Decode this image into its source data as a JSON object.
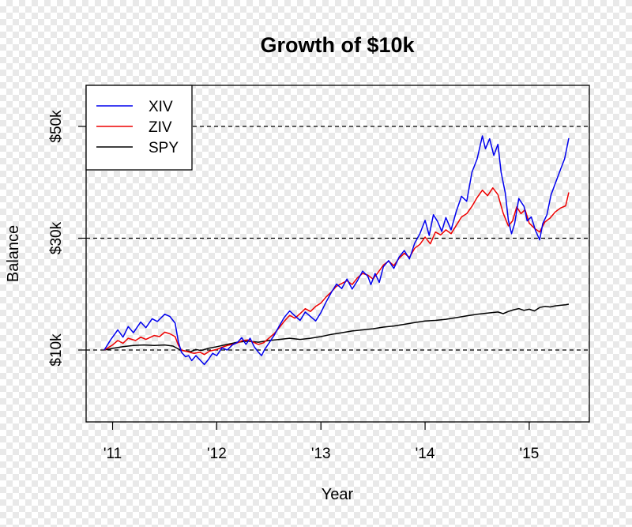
{
  "chart_data": {
    "type": "line",
    "title": "Growth of $10k",
    "xlabel": "Year",
    "ylabel": "Balance",
    "x_range": [
      2010.92,
      2015.38
    ],
    "x_ticks": [
      {
        "value": 2011,
        "label": "'11"
      },
      {
        "value": 2012,
        "label": "'12"
      },
      {
        "value": 2013,
        "label": "'13"
      },
      {
        "value": 2014,
        "label": "'14"
      },
      {
        "value": 2015,
        "label": "'15"
      }
    ],
    "ylim": [
      0,
      59000
    ],
    "y_ticks": [
      {
        "value": 10000,
        "label": "$10k"
      },
      {
        "value": 30000,
        "label": "$30k"
      },
      {
        "value": 50000,
        "label": "$50k"
      }
    ],
    "reference_lines": [
      10000,
      30000,
      50000
    ],
    "grid": false,
    "legend_position": "top-left",
    "series": [
      {
        "name": "XIV",
        "color": "#0000ee",
        "points": [
          [
            2010.92,
            10000
          ],
          [
            2010.98,
            11800
          ],
          [
            2011.05,
            13600
          ],
          [
            2011.1,
            12300
          ],
          [
            2011.15,
            14200
          ],
          [
            2011.2,
            13100
          ],
          [
            2011.27,
            15000
          ],
          [
            2011.32,
            14000
          ],
          [
            2011.38,
            15600
          ],
          [
            2011.43,
            15100
          ],
          [
            2011.5,
            16400
          ],
          [
            2011.55,
            16000
          ],
          [
            2011.6,
            14800
          ],
          [
            2011.63,
            11600
          ],
          [
            2011.66,
            9600
          ],
          [
            2011.7,
            8800
          ],
          [
            2011.73,
            9000
          ],
          [
            2011.76,
            8100
          ],
          [
            2011.8,
            9000
          ],
          [
            2011.84,
            8200
          ],
          [
            2011.88,
            7400
          ],
          [
            2011.92,
            8300
          ],
          [
            2011.96,
            9400
          ],
          [
            2012.0,
            9000
          ],
          [
            2012.05,
            10400
          ],
          [
            2012.1,
            10000
          ],
          [
            2012.15,
            10900
          ],
          [
            2012.2,
            11400
          ],
          [
            2012.24,
            12200
          ],
          [
            2012.28,
            11000
          ],
          [
            2012.32,
            12100
          ],
          [
            2012.36,
            10600
          ],
          [
            2012.4,
            9600
          ],
          [
            2012.43,
            9000
          ],
          [
            2012.46,
            10100
          ],
          [
            2012.5,
            11200
          ],
          [
            2012.55,
            12600
          ],
          [
            2012.6,
            14300
          ],
          [
            2012.65,
            15900
          ],
          [
            2012.7,
            17000
          ],
          [
            2012.75,
            16100
          ],
          [
            2012.8,
            15300
          ],
          [
            2012.85,
            16800
          ],
          [
            2012.9,
            16000
          ],
          [
            2012.95,
            15200
          ],
          [
            2013.0,
            16700
          ],
          [
            2013.05,
            18600
          ],
          [
            2013.1,
            20300
          ],
          [
            2013.15,
            21800
          ],
          [
            2013.2,
            21000
          ],
          [
            2013.25,
            22700
          ],
          [
            2013.3,
            20900
          ],
          [
            2013.35,
            22400
          ],
          [
            2013.4,
            24100
          ],
          [
            2013.45,
            23200
          ],
          [
            2013.48,
            21700
          ],
          [
            2013.52,
            23700
          ],
          [
            2013.56,
            22100
          ],
          [
            2013.6,
            24900
          ],
          [
            2013.65,
            26000
          ],
          [
            2013.7,
            24600
          ],
          [
            2013.75,
            26600
          ],
          [
            2013.8,
            27800
          ],
          [
            2013.85,
            26300
          ],
          [
            2013.9,
            29100
          ],
          [
            2013.95,
            30800
          ],
          [
            2014.0,
            33200
          ],
          [
            2014.04,
            30500
          ],
          [
            2014.08,
            34200
          ],
          [
            2014.12,
            33000
          ],
          [
            2014.16,
            31200
          ],
          [
            2014.2,
            33700
          ],
          [
            2014.25,
            31500
          ],
          [
            2014.3,
            34800
          ],
          [
            2014.35,
            37500
          ],
          [
            2014.4,
            36600
          ],
          [
            2014.45,
            41800
          ],
          [
            2014.5,
            44200
          ],
          [
            2014.55,
            48300
          ],
          [
            2014.58,
            46000
          ],
          [
            2014.62,
            47800
          ],
          [
            2014.66,
            44800
          ],
          [
            2014.7,
            46800
          ],
          [
            2014.73,
            41800
          ],
          [
            2014.77,
            38100
          ],
          [
            2014.8,
            33200
          ],
          [
            2014.83,
            30800
          ],
          [
            2014.86,
            32600
          ],
          [
            2014.9,
            37100
          ],
          [
            2014.95,
            35700
          ],
          [
            2014.98,
            33100
          ],
          [
            2015.02,
            33800
          ],
          [
            2015.06,
            31400
          ],
          [
            2015.1,
            29700
          ],
          [
            2015.13,
            32600
          ],
          [
            2015.17,
            34200
          ],
          [
            2015.21,
            37800
          ],
          [
            2015.25,
            39800
          ],
          [
            2015.3,
            42300
          ],
          [
            2015.34,
            44200
          ],
          [
            2015.38,
            47900
          ]
        ]
      },
      {
        "name": "ZIV",
        "color": "#ee0000",
        "points": [
          [
            2010.92,
            10000
          ],
          [
            2011.0,
            10900
          ],
          [
            2011.05,
            11700
          ],
          [
            2011.1,
            11200
          ],
          [
            2011.15,
            12100
          ],
          [
            2011.22,
            11700
          ],
          [
            2011.27,
            12300
          ],
          [
            2011.32,
            11900
          ],
          [
            2011.4,
            12600
          ],
          [
            2011.45,
            12400
          ],
          [
            2011.5,
            13200
          ],
          [
            2011.55,
            12900
          ],
          [
            2011.6,
            12400
          ],
          [
            2011.63,
            10900
          ],
          [
            2011.66,
            10000
          ],
          [
            2011.72,
            9700
          ],
          [
            2011.78,
            9400
          ],
          [
            2011.84,
            9600
          ],
          [
            2011.88,
            9200
          ],
          [
            2011.93,
            9800
          ],
          [
            2012.0,
            10100
          ],
          [
            2012.05,
            10500
          ],
          [
            2012.1,
            10800
          ],
          [
            2012.15,
            11000
          ],
          [
            2012.2,
            11300
          ],
          [
            2012.25,
            11700
          ],
          [
            2012.3,
            11800
          ],
          [
            2012.35,
            11400
          ],
          [
            2012.4,
            11000
          ],
          [
            2012.45,
            11300
          ],
          [
            2012.5,
            12100
          ],
          [
            2012.55,
            12900
          ],
          [
            2012.6,
            14000
          ],
          [
            2012.65,
            15200
          ],
          [
            2012.7,
            16200
          ],
          [
            2012.75,
            15700
          ],
          [
            2012.8,
            16500
          ],
          [
            2012.85,
            17400
          ],
          [
            2012.9,
            16900
          ],
          [
            2012.95,
            17800
          ],
          [
            2013.0,
            18400
          ],
          [
            2013.05,
            19500
          ],
          [
            2013.1,
            20400
          ],
          [
            2013.15,
            21400
          ],
          [
            2013.2,
            21900
          ],
          [
            2013.25,
            22400
          ],
          [
            2013.3,
            21700
          ],
          [
            2013.35,
            22900
          ],
          [
            2013.4,
            23700
          ],
          [
            2013.45,
            23400
          ],
          [
            2013.5,
            22700
          ],
          [
            2013.55,
            23900
          ],
          [
            2013.6,
            25200
          ],
          [
            2013.65,
            25900
          ],
          [
            2013.7,
            25100
          ],
          [
            2013.75,
            26400
          ],
          [
            2013.8,
            27300
          ],
          [
            2013.85,
            26600
          ],
          [
            2013.9,
            28200
          ],
          [
            2013.95,
            28900
          ],
          [
            2014.0,
            30200
          ],
          [
            2014.05,
            29000
          ],
          [
            2014.1,
            31100
          ],
          [
            2014.15,
            30600
          ],
          [
            2014.2,
            31500
          ],
          [
            2014.25,
            30800
          ],
          [
            2014.3,
            32300
          ],
          [
            2014.35,
            33800
          ],
          [
            2014.4,
            34400
          ],
          [
            2014.45,
            35700
          ],
          [
            2014.5,
            37300
          ],
          [
            2014.55,
            38600
          ],
          [
            2014.6,
            37600
          ],
          [
            2014.65,
            39000
          ],
          [
            2014.7,
            37800
          ],
          [
            2014.75,
            34500
          ],
          [
            2014.8,
            32200
          ],
          [
            2014.84,
            33100
          ],
          [
            2014.88,
            35600
          ],
          [
            2014.92,
            34400
          ],
          [
            2014.96,
            35100
          ],
          [
            2015.0,
            32700
          ],
          [
            2015.05,
            31800
          ],
          [
            2015.1,
            31100
          ],
          [
            2015.15,
            32900
          ],
          [
            2015.2,
            33600
          ],
          [
            2015.25,
            34700
          ],
          [
            2015.3,
            35400
          ],
          [
            2015.35,
            35800
          ],
          [
            2015.38,
            38200
          ]
        ]
      },
      {
        "name": "SPY",
        "color": "#000000",
        "points": [
          [
            2010.92,
            10000
          ],
          [
            2011.0,
            10300
          ],
          [
            2011.1,
            10600
          ],
          [
            2011.2,
            10800
          ],
          [
            2011.3,
            10900
          ],
          [
            2011.4,
            10800
          ],
          [
            2011.5,
            10900
          ],
          [
            2011.58,
            10700
          ],
          [
            2011.65,
            10000
          ],
          [
            2011.7,
            9800
          ],
          [
            2011.75,
            9700
          ],
          [
            2011.8,
            10100
          ],
          [
            2011.85,
            9900
          ],
          [
            2011.92,
            10300
          ],
          [
            2012.0,
            10600
          ],
          [
            2012.1,
            11000
          ],
          [
            2012.2,
            11400
          ],
          [
            2012.3,
            11600
          ],
          [
            2012.4,
            11400
          ],
          [
            2012.5,
            11700
          ],
          [
            2012.6,
            11900
          ],
          [
            2012.7,
            12100
          ],
          [
            2012.8,
            11900
          ],
          [
            2012.9,
            12100
          ],
          [
            2013.0,
            12400
          ],
          [
            2013.1,
            12800
          ],
          [
            2013.2,
            13100
          ],
          [
            2013.3,
            13400
          ],
          [
            2013.4,
            13600
          ],
          [
            2013.5,
            13800
          ],
          [
            2013.6,
            14100
          ],
          [
            2013.7,
            14300
          ],
          [
            2013.8,
            14600
          ],
          [
            2013.9,
            14900
          ],
          [
            2014.0,
            15200
          ],
          [
            2014.1,
            15300
          ],
          [
            2014.2,
            15500
          ],
          [
            2014.3,
            15800
          ],
          [
            2014.4,
            16100
          ],
          [
            2014.5,
            16400
          ],
          [
            2014.6,
            16600
          ],
          [
            2014.7,
            16800
          ],
          [
            2014.75,
            16500
          ],
          [
            2014.8,
            16900
          ],
          [
            2014.85,
            17200
          ],
          [
            2014.9,
            17400
          ],
          [
            2014.95,
            17100
          ],
          [
            2015.0,
            17300
          ],
          [
            2015.05,
            17000
          ],
          [
            2015.1,
            17600
          ],
          [
            2015.15,
            17800
          ],
          [
            2015.2,
            17700
          ],
          [
            2015.25,
            17900
          ],
          [
            2015.3,
            18000
          ],
          [
            2015.35,
            18100
          ],
          [
            2015.38,
            18200
          ]
        ]
      }
    ]
  }
}
